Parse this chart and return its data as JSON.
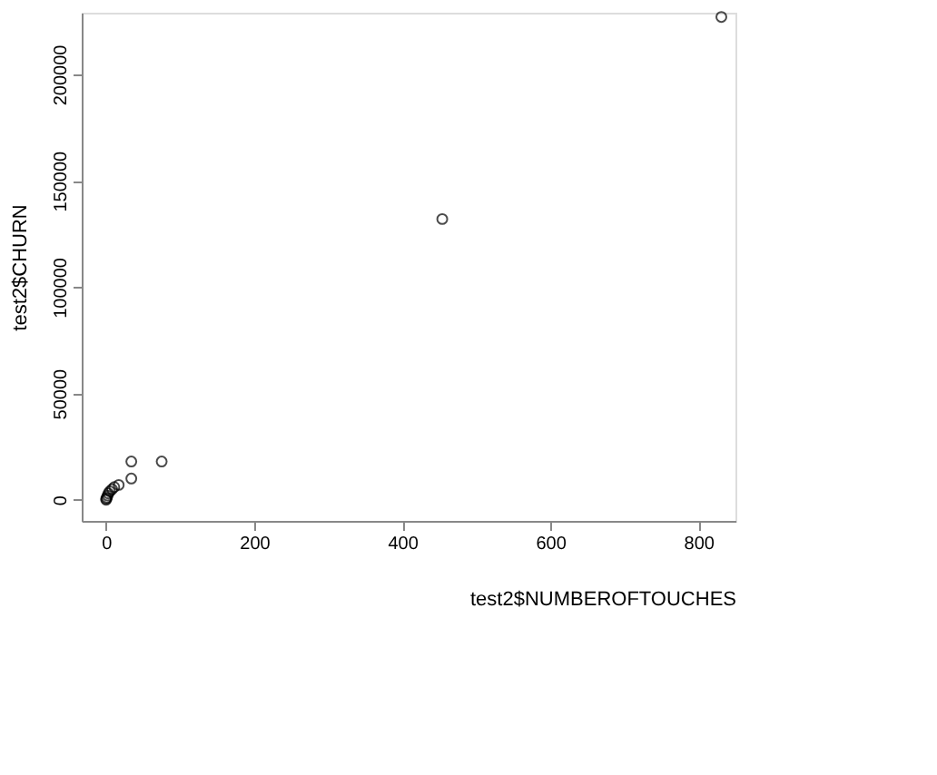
{
  "chart_data": {
    "type": "scatter",
    "xlabel": "test2$NUMBEROFTOUCHES",
    "ylabel": "test2$CHURN",
    "x": [
      831,
      454,
      75,
      34,
      34,
      17,
      11,
      8,
      5,
      3,
      2,
      1,
      0,
      0
    ],
    "values": [
      227000,
      132000,
      18000,
      18000,
      10000,
      7000,
      6000,
      5000,
      4000,
      3000,
      2000,
      1000,
      500,
      0
    ],
    "color": "#000000",
    "marker": "circle",
    "grid": false,
    "xlim": [
      -33,
      850
    ],
    "ylim": [
      -9900,
      229000
    ],
    "xticks": [
      0,
      200,
      400,
      600,
      800
    ],
    "yticks": [
      0,
      50000,
      100000,
      150000,
      200000
    ]
  }
}
